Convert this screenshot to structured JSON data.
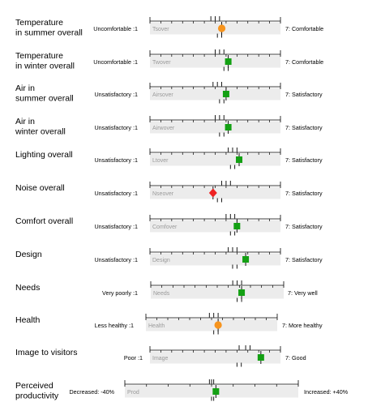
{
  "chart_data": {
    "type": "scatter",
    "scale_note": "1–7 rating scales; marker = mean score; tick marks above/below bar = benchmark ranges",
    "legend_colors": {
      "good": "#13a013",
      "neutral": "#f7941d",
      "poor": "#ee2222"
    },
    "rows": [
      {
        "label": [
          "Temperature",
          "in summer overall"
        ],
        "left": "Uncomfortable :1",
        "right": "7: Comfortable",
        "var": "Tsover",
        "mean": 4.3,
        "marker": "circle",
        "color": "#f7941d",
        "ticks_top": [
          3.8,
          4.0,
          4.2
        ],
        "ticks_bottom": [
          4.1,
          4.3
        ]
      },
      {
        "label": [
          "Temperature",
          "in winter overall"
        ],
        "left": "Uncomfortable :1",
        "right": "7: Comfortable",
        "var": "Twover",
        "mean": 4.6,
        "marker": "square",
        "color": "#13a013",
        "ticks_top": [
          4.0,
          4.2,
          4.4
        ],
        "ticks_bottom": [
          4.4,
          4.6
        ]
      },
      {
        "label": [
          "Air in",
          "summer overall"
        ],
        "left": "Unsatisfactory :1",
        "right": "7: Satisfactory",
        "var": "Airsover",
        "mean": 4.5,
        "marker": "square",
        "color": "#13a013",
        "ticks_top": [
          3.9,
          4.1,
          4.3
        ],
        "ticks_bottom": [
          4.2,
          4.4
        ]
      },
      {
        "label": [
          "Air in",
          "winter overall"
        ],
        "left": "Unsatisfactory :1",
        "right": "7: Satisfactory",
        "var": "Airwover",
        "mean": 4.6,
        "marker": "square",
        "color": "#13a013",
        "ticks_top": [
          4.0,
          4.2,
          4.4
        ],
        "ticks_bottom": [
          4.2,
          4.4
        ]
      },
      {
        "label": [
          "Lighting overall"
        ],
        "left": "Unsatisfactory :1",
        "right": "7: Satisfactory",
        "var": "Ltover",
        "mean": 5.1,
        "marker": "square",
        "color": "#13a013",
        "ticks_top": [
          4.6,
          4.8,
          5.0
        ],
        "ticks_bottom": [
          4.7,
          4.9
        ]
      },
      {
        "label": [
          "Noise overall"
        ],
        "left": "Unsatisfactory :1",
        "right": "7: Satisfactory",
        "var": "Nseover",
        "mean": 3.9,
        "marker": "diamond",
        "color": "#ee2222",
        "ticks_top": [
          4.3,
          4.5,
          4.7
        ],
        "ticks_bottom": [
          4.1,
          4.3
        ]
      },
      {
        "label": [
          "Comfort overall"
        ],
        "left": "Unsatisfactory :1",
        "right": "7: Satisfactory",
        "var": "Comfover",
        "mean": 5.0,
        "marker": "square",
        "color": "#13a013",
        "ticks_top": [
          4.5,
          4.7,
          4.9
        ],
        "ticks_bottom": [
          4.7,
          4.9
        ]
      },
      {
        "label": [
          "Design"
        ],
        "left": "Unsatisfactory :1",
        "right": "7: Satisfactory",
        "var": "Design",
        "mean": 5.4,
        "marker": "square",
        "color": "#13a013",
        "ticks_top": [
          4.6,
          4.8,
          5.0
        ],
        "ticks_bottom": [
          4.8,
          5.0
        ]
      },
      {
        "label": [
          "Needs"
        ],
        "left": "Very poorly :1",
        "right": "7: Very well",
        "var": "Needs",
        "mean": 5.1,
        "marker": "square",
        "color": "#13a013",
        "ticks_top": [
          4.7,
          4.9,
          5.1
        ],
        "ticks_bottom": [
          4.9,
          5.1
        ]
      },
      {
        "label": [
          "Health"
        ],
        "left": "Less healthy :1",
        "right": "7: More healthy",
        "var": "Health",
        "mean": 4.3,
        "marker": "circle",
        "color": "#f7941d",
        "ticks_top": [
          3.9,
          4.1,
          4.3
        ],
        "ticks_bottom": [
          4.1,
          4.3
        ]
      },
      {
        "label": [
          "Image to visitors"
        ],
        "left": "Poor :1",
        "right": "7: Good",
        "var": "Image",
        "mean": 6.1,
        "marker": "square",
        "color": "#13a013",
        "ticks_top": [
          5.1,
          5.4,
          5.6
        ],
        "ticks_bottom": [
          5.0,
          5.2
        ]
      },
      {
        "label": [
          "Perceived",
          "productivity"
        ],
        "left": "Decreased: -40%",
        "right": "Increased: +40%",
        "var": "Prod",
        "mean": 2,
        "marker": "square",
        "color": "#13a013",
        "ticks_top": [
          -1,
          0,
          1
        ],
        "ticks_bottom": [
          0,
          1
        ],
        "scale": {
          "min": -40,
          "max": 40,
          "step": 10
        }
      }
    ],
    "scale": {
      "min": 1,
      "max": 7,
      "step": 0.5
    }
  }
}
